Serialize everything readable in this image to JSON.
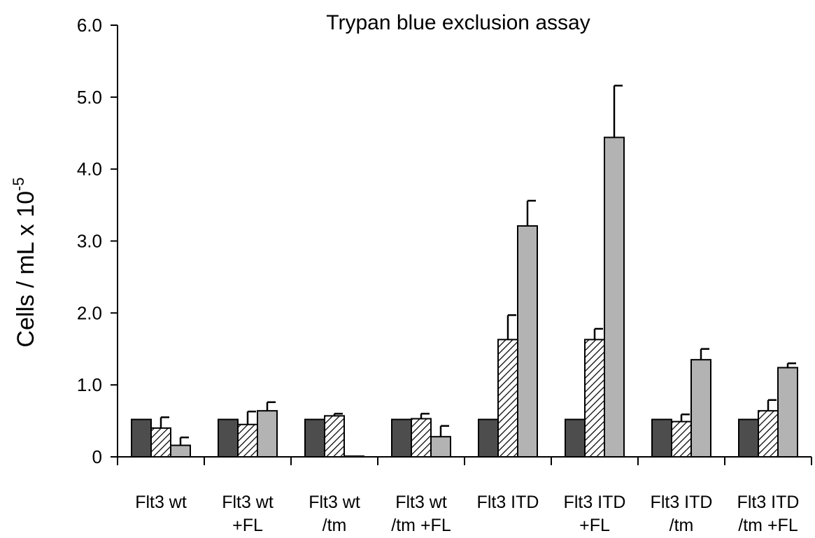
{
  "chart_data": {
    "type": "bar",
    "title": "Trypan blue exclusion assay",
    "ylabel": "Cells / mL x 10",
    "ylabel_sup": "-5",
    "xlabel": "",
    "ylim": [
      0,
      6.0
    ],
    "yticks": [
      {
        "value": 0,
        "label": "0"
      },
      {
        "value": 1,
        "label": "1.0"
      },
      {
        "value": 2,
        "label": "2.0"
      },
      {
        "value": 3,
        "label": "3.0"
      },
      {
        "value": 4,
        "label": "4.0"
      },
      {
        "value": 5,
        "label": "5.0"
      },
      {
        "value": 6,
        "label": "6.0"
      }
    ],
    "categories": [
      [
        "Flt3 wt"
      ],
      [
        "Flt3 wt",
        "+FL"
      ],
      [
        "Flt3 wt",
        "/tm"
      ],
      [
        "Flt3 wt",
        "/tm +FL"
      ],
      [
        "Flt3 ITD"
      ],
      [
        "Flt3 ITD",
        "+FL"
      ],
      [
        "Flt3 ITD",
        "/tm"
      ],
      [
        "Flt3 ITD",
        "/tm +FL"
      ]
    ],
    "series": [
      {
        "style": "dark",
        "color": "#4d4d4d",
        "values": [
          0.52,
          0.52,
          0.52,
          0.52,
          0.52,
          0.52,
          0.52,
          0.52
        ],
        "errors": [
          0,
          0,
          0,
          0,
          0,
          0,
          0,
          0
        ]
      },
      {
        "style": "hatched",
        "color": "#ffffff",
        "values": [
          0.4,
          0.45,
          0.57,
          0.53,
          1.63,
          1.63,
          0.49,
          0.64
        ],
        "errors": [
          0.15,
          0.18,
          0.03,
          0.07,
          0.34,
          0.15,
          0.1,
          0.15
        ]
      },
      {
        "style": "gray",
        "color": "#b3b3b3",
        "values": [
          0.16,
          0.64,
          0.01,
          0.28,
          3.21,
          4.44,
          1.35,
          1.24
        ],
        "errors": [
          0.11,
          0.12,
          0,
          0.15,
          0.35,
          0.72,
          0.15,
          0.06
        ]
      }
    ],
    "grid": false,
    "legend": "none"
  }
}
